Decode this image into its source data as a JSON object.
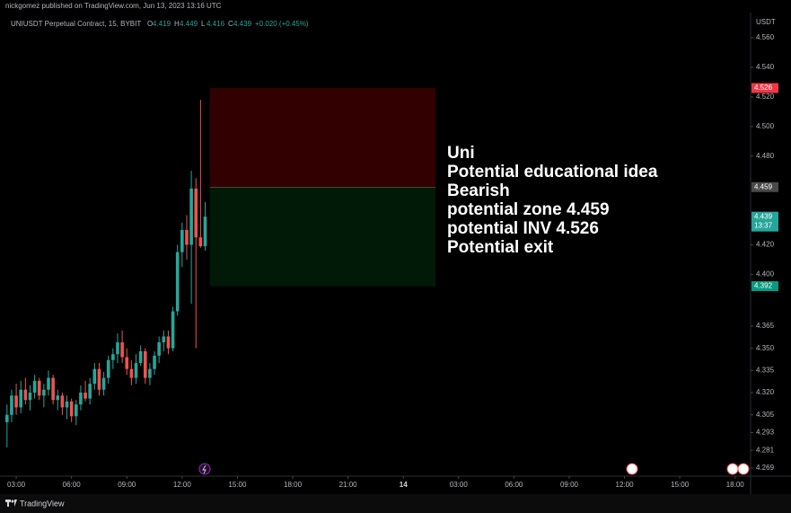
{
  "header": {
    "publisher": "nickgomez published on TradingView.com, Jun 13, 2023 13:16 UTC",
    "currency": "USDT",
    "countdown": "13:37",
    "brand": "TradingView"
  },
  "legend": {
    "symbol": "UNIUSDT Perpetual Contract, 15, BYBIT",
    "labels": [
      "O",
      "H",
      "L",
      "C"
    ],
    "change": "+0.020 (+0.45%)"
  },
  "chart_data": {
    "type": "candlestick",
    "up_color": "#26a69a",
    "down_color": "#ef5350",
    "x": [
      2.5,
      2.75,
      3,
      3.25,
      3.5,
      3.75,
      4,
      4.25,
      4.5,
      4.75,
      5,
      5.25,
      5.5,
      5.75,
      6,
      6.25,
      6.5,
      6.75,
      7,
      7.25,
      7.5,
      7.75,
      8,
      8.25,
      8.5,
      8.75,
      9,
      9.25,
      9.5,
      9.75,
      10,
      10.25,
      10.5,
      10.75,
      11,
      11.25,
      11.5,
      11.75,
      12,
      12.25,
      12.5,
      12.75,
      13,
      13.25
    ],
    "open": [
      4.3,
      4.305,
      4.318,
      4.31,
      4.322,
      4.315,
      4.32,
      4.328,
      4.318,
      4.322,
      4.33,
      4.315,
      4.318,
      4.31,
      4.314,
      4.304,
      4.312,
      4.32,
      4.316,
      4.326,
      4.336,
      4.322,
      4.33,
      4.342,
      4.346,
      4.354,
      4.344,
      4.336,
      4.33,
      4.34,
      4.348,
      4.33,
      4.336,
      4.345,
      4.354,
      4.358,
      4.35,
      4.375,
      4.415,
      4.43,
      4.42,
      4.458,
      4.425,
      4.419
    ],
    "high": [
      4.312,
      4.322,
      4.326,
      4.328,
      4.33,
      4.325,
      4.332,
      4.33,
      4.326,
      4.335,
      4.332,
      4.322,
      4.32,
      4.318,
      4.316,
      4.315,
      4.325,
      4.328,
      4.33,
      4.34,
      4.34,
      4.334,
      4.345,
      4.35,
      4.36,
      4.362,
      4.35,
      4.342,
      4.346,
      4.352,
      4.35,
      4.34,
      4.348,
      4.358,
      4.362,
      4.362,
      4.378,
      4.42,
      4.435,
      4.44,
      4.47,
      4.465,
      4.518,
      4.449
    ],
    "low": [
      4.283,
      4.3,
      4.305,
      4.306,
      4.312,
      4.308,
      4.316,
      4.315,
      4.31,
      4.318,
      4.312,
      4.308,
      4.305,
      4.302,
      4.3,
      4.298,
      4.308,
      4.314,
      4.312,
      4.322,
      4.318,
      4.318,
      4.326,
      4.336,
      4.34,
      4.34,
      4.332,
      4.325,
      4.326,
      4.338,
      4.326,
      4.325,
      4.332,
      4.34,
      4.348,
      4.346,
      4.348,
      4.372,
      4.405,
      4.41,
      4.38,
      4.35,
      4.418,
      4.416
    ],
    "close": [
      4.305,
      4.318,
      4.31,
      4.322,
      4.315,
      4.32,
      4.328,
      4.318,
      4.322,
      4.33,
      4.315,
      4.318,
      4.31,
      4.314,
      4.304,
      4.312,
      4.32,
      4.316,
      4.326,
      4.336,
      4.322,
      4.33,
      4.342,
      4.346,
      4.354,
      4.344,
      4.336,
      4.33,
      4.34,
      4.348,
      4.33,
      4.336,
      4.345,
      4.354,
      4.358,
      4.35,
      4.375,
      4.415,
      4.43,
      4.42,
      4.458,
      4.425,
      4.419,
      4.439
    ],
    "xlim": [
      2.12,
      42.84
    ],
    "ylim": [
      4.2635,
      4.5746
    ],
    "xticks": [
      {
        "value": 3,
        "label": "03:00"
      },
      {
        "value": 6,
        "label": "06:00"
      },
      {
        "value": 9,
        "label": "09:00"
      },
      {
        "value": 12,
        "label": "12:00"
      },
      {
        "value": 15,
        "label": "15:00"
      },
      {
        "value": 18,
        "label": "18:00"
      },
      {
        "value": 21,
        "label": "21:00"
      },
      {
        "value": 24,
        "label": "14"
      },
      {
        "value": 27,
        "label": "03:00"
      },
      {
        "value": 30,
        "label": "06:00"
      },
      {
        "value": 33,
        "label": "09:00"
      },
      {
        "value": 36,
        "label": "12:00"
      },
      {
        "value": 39,
        "label": "15:00"
      },
      {
        "value": 42,
        "label": "18:00"
      }
    ],
    "yticks": [
      {
        "value": 4.56,
        "label": "4.560"
      },
      {
        "value": 4.54,
        "label": "4.540"
      },
      {
        "value": 4.52,
        "label": "4.520"
      },
      {
        "value": 4.5,
        "label": "4.500"
      },
      {
        "value": 4.48,
        "label": "4.480"
      },
      {
        "value": 4.42,
        "label": "4.420"
      },
      {
        "value": 4.4,
        "label": "4.400"
      },
      {
        "value": 4.365,
        "label": "4.365"
      },
      {
        "value": 4.35,
        "label": "4.350"
      },
      {
        "value": 4.335,
        "label": "4.335"
      },
      {
        "value": 4.32,
        "label": "4.320"
      },
      {
        "value": 4.305,
        "label": "4.305"
      },
      {
        "value": 4.293,
        "label": "4.293"
      },
      {
        "value": 4.281,
        "label": "4.281"
      },
      {
        "value": 4.269,
        "label": "4.269"
      }
    ],
    "position": {
      "stop": 4.526,
      "entry": 4.459,
      "target": 4.392,
      "start": 13.5,
      "end": 25.75
    },
    "note": [
      "Uni",
      "Potential educational idea",
      "Bearish",
      "potential zone 4.459",
      "potential INV 4.526",
      "Potential exit"
    ]
  }
}
